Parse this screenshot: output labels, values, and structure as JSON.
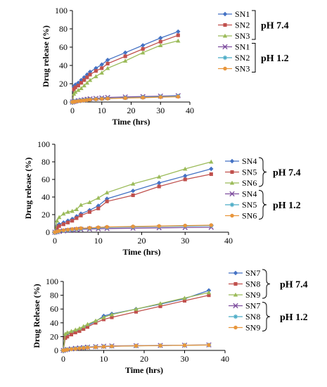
{
  "chart_data": [
    {
      "type": "line",
      "xlabel": "Time (hrs)",
      "ylabel": "Drug release (%)",
      "xlim": [
        0,
        40
      ],
      "ylim": [
        0,
        100
      ],
      "xticks": [
        0,
        10,
        20,
        30,
        40
      ],
      "yticks": [
        0,
        20,
        40,
        60,
        80,
        100
      ],
      "legend_position": "right",
      "groups": [
        {
          "label": "pH 7.4",
          "series": [
            0,
            1,
            2
          ]
        },
        {
          "label": "pH 1.2",
          "series": [
            3,
            4,
            5
          ]
        }
      ],
      "series": [
        {
          "name": "SN1",
          "color": "#4472c4",
          "marker": "diamond",
          "x": [
            0,
            0.5,
            1,
            2,
            3,
            4,
            5,
            6,
            8,
            10,
            12,
            18,
            24,
            30,
            36
          ],
          "y": [
            0,
            17,
            19,
            21,
            24,
            27,
            30,
            33,
            37,
            41,
            46,
            54,
            62,
            70,
            77
          ]
        },
        {
          "name": "SN2",
          "color": "#c0504d",
          "marker": "square",
          "x": [
            0,
            0.5,
            1,
            2,
            3,
            4,
            5,
            6,
            8,
            10,
            12,
            18,
            24,
            30,
            36
          ],
          "y": [
            0,
            14,
            16,
            18,
            21,
            24,
            27,
            30,
            34,
            37,
            42,
            50,
            58,
            66,
            73
          ]
        },
        {
          "name": "SN3",
          "color": "#9bbb59",
          "marker": "triangle",
          "x": [
            0,
            0.5,
            1,
            2,
            3,
            4,
            5,
            6,
            8,
            10,
            12,
            18,
            24,
            30,
            36
          ],
          "y": [
            0,
            9,
            11,
            13,
            15,
            18,
            21,
            24,
            28,
            32,
            37,
            45,
            54,
            62,
            67
          ]
        },
        {
          "name": "SN1",
          "color": "#7f4f9f",
          "marker": "x",
          "x": [
            0,
            0.5,
            1,
            2,
            3,
            4,
            5,
            6,
            8,
            10,
            12,
            18,
            24,
            30,
            36
          ],
          "y": [
            0,
            0.5,
            1,
            1.5,
            2,
            2.5,
            3,
            3.5,
            4,
            4.5,
            5,
            5.5,
            6,
            6.5,
            7
          ]
        },
        {
          "name": "SN2",
          "color": "#4bacc6",
          "marker": "star",
          "x": [
            0,
            0.5,
            1,
            2,
            3,
            4,
            5,
            6,
            8,
            10,
            12,
            18,
            24,
            30,
            36
          ],
          "y": [
            0,
            0.4,
            0.8,
            1.2,
            1.6,
            2,
            2.4,
            2.8,
            3.2,
            3.6,
            4,
            4.6,
            5.2,
            5.8,
            6.4
          ]
        },
        {
          "name": "SN3",
          "color": "#e8963c",
          "marker": "circle",
          "x": [
            0,
            0.5,
            1,
            2,
            3,
            4,
            5,
            6,
            8,
            10,
            12,
            18,
            24,
            30,
            36
          ],
          "y": [
            0,
            0.3,
            0.6,
            1,
            1.4,
            1.8,
            2.2,
            2.6,
            3,
            3.4,
            3.8,
            4.3,
            4.8,
            5.3,
            5.8
          ]
        }
      ]
    },
    {
      "type": "line",
      "xlabel": "Time (hrs)",
      "ylabel": "Drug release (%)",
      "xlim": [
        0,
        40
      ],
      "ylim": [
        0,
        100
      ],
      "xticks": [
        0,
        10,
        20,
        30,
        40
      ],
      "yticks": [
        0,
        20,
        40,
        60,
        80,
        100
      ],
      "legend_position": "right",
      "groups": [
        {
          "label": "pH 7.4",
          "series": [
            0,
            1,
            2
          ]
        },
        {
          "label": "pH 1.2",
          "series": [
            3,
            4,
            5
          ]
        }
      ],
      "series": [
        {
          "name": "SN4",
          "color": "#4472c4",
          "marker": "diamond",
          "x": [
            0,
            0.5,
            1,
            2,
            3,
            4,
            5,
            6,
            8,
            10,
            12,
            18,
            24,
            30,
            36
          ],
          "y": [
            0,
            7,
            9,
            11,
            13,
            15,
            18,
            21,
            25,
            30,
            38,
            47,
            56,
            64,
            72
          ]
        },
        {
          "name": "SN5",
          "color": "#c0504d",
          "marker": "square",
          "x": [
            0,
            0.5,
            1,
            2,
            3,
            4,
            5,
            6,
            8,
            10,
            12,
            18,
            24,
            30,
            36
          ],
          "y": [
            0,
            5,
            7,
            9,
            11,
            13,
            16,
            19,
            23,
            27,
            35,
            42,
            52,
            60,
            66
          ]
        },
        {
          "name": "SN6",
          "color": "#9bbb59",
          "marker": "triangle",
          "x": [
            0,
            0.5,
            1,
            2,
            3,
            4,
            5,
            6,
            8,
            10,
            12,
            18,
            24,
            30,
            36
          ],
          "y": [
            0,
            13,
            17,
            21,
            23,
            24,
            26,
            31,
            34,
            39,
            45,
            55,
            63,
            72,
            80
          ]
        },
        {
          "name": "SN4",
          "color": "#7f4f9f",
          "marker": "x",
          "x": [
            0,
            0.5,
            1,
            2,
            3,
            4,
            5,
            6,
            8,
            10,
            12,
            18,
            24,
            30,
            36
          ],
          "y": [
            0,
            0.5,
            1,
            1.5,
            2,
            2.5,
            3,
            3.3,
            3.6,
            3.9,
            4.2,
            4.6,
            5,
            5.3,
            5.6
          ]
        },
        {
          "name": "SN5",
          "color": "#4bacc6",
          "marker": "star",
          "x": [
            0,
            0.5,
            1,
            2,
            3,
            4,
            5,
            6,
            8,
            10,
            12,
            18,
            24,
            30,
            36
          ],
          "y": [
            0,
            0.6,
            1.2,
            1.8,
            2.4,
            3,
            3.5,
            4,
            4.5,
            5,
            5.5,
            6,
            6.5,
            7,
            7.5
          ]
        },
        {
          "name": "SN6",
          "color": "#e8963c",
          "marker": "circle",
          "x": [
            0,
            0.5,
            1,
            2,
            3,
            4,
            5,
            6,
            8,
            10,
            12,
            18,
            24,
            30,
            36
          ],
          "y": [
            0,
            0.8,
            1.5,
            2.2,
            2.9,
            3.5,
            4,
            4.5,
            5,
            5.5,
            6,
            6.5,
            7,
            7.5,
            8
          ]
        }
      ]
    },
    {
      "type": "line",
      "xlabel": "Time (hrs)",
      "ylabel": "Drug Release (%)",
      "xlim": [
        0,
        40
      ],
      "ylim": [
        0,
        100
      ],
      "xticks": [
        0,
        10,
        20,
        30,
        40
      ],
      "yticks": [
        0,
        20,
        40,
        60,
        80,
        100
      ],
      "legend_position": "right",
      "groups": [
        {
          "label": "pH 7.4",
          "series": [
            0,
            1,
            2
          ]
        },
        {
          "label": "pH 1.2",
          "series": [
            3,
            4,
            5
          ]
        }
      ],
      "series": [
        {
          "name": "SN7",
          "color": "#4472c4",
          "marker": "diamond",
          "x": [
            0,
            0.5,
            1,
            2,
            3,
            4,
            5,
            6,
            8,
            10,
            12,
            18,
            24,
            30,
            36
          ],
          "y": [
            0,
            22,
            24,
            26,
            28,
            30,
            33,
            36,
            42,
            50,
            53,
            60,
            67,
            75,
            87
          ]
        },
        {
          "name": "SN8",
          "color": "#c0504d",
          "marker": "square",
          "x": [
            0,
            0.5,
            1,
            2,
            3,
            4,
            5,
            6,
            8,
            10,
            12,
            18,
            24,
            30,
            36
          ],
          "y": [
            0,
            18,
            20,
            23,
            26,
            28,
            31,
            34,
            40,
            45,
            48,
            56,
            64,
            72,
            80
          ]
        },
        {
          "name": "SN9",
          "color": "#9bbb59",
          "marker": "triangle",
          "x": [
            0,
            0.5,
            1,
            2,
            3,
            4,
            5,
            6,
            8,
            10,
            12,
            18,
            24,
            30,
            36
          ],
          "y": [
            0,
            24,
            26,
            28,
            30,
            32,
            35,
            38,
            43,
            48,
            52,
            60,
            68,
            76,
            84
          ]
        },
        {
          "name": "SN7",
          "color": "#7f4f9f",
          "marker": "x",
          "x": [
            0,
            0.5,
            1,
            2,
            3,
            4,
            5,
            6,
            8,
            10,
            12,
            18,
            24,
            30,
            36
          ],
          "y": [
            0,
            0.8,
            1.5,
            2.2,
            3,
            3.6,
            4.2,
            4.8,
            5.4,
            6,
            6.4,
            6.8,
            7.2,
            7.6,
            8
          ]
        },
        {
          "name": "SN8",
          "color": "#4bacc6",
          "marker": "star",
          "x": [
            0,
            0.5,
            1,
            2,
            3,
            4,
            5,
            6,
            8,
            10,
            12,
            18,
            24,
            30,
            36
          ],
          "y": [
            0,
            0.7,
            1.3,
            2,
            2.7,
            3.3,
            3.9,
            4.5,
            5,
            5.5,
            6,
            6.5,
            7,
            7.4,
            7.8
          ]
        },
        {
          "name": "SN9",
          "color": "#e8963c",
          "marker": "circle",
          "x": [
            0,
            0.5,
            1,
            2,
            3,
            4,
            5,
            6,
            8,
            10,
            12,
            18,
            24,
            30,
            36
          ],
          "y": [
            0,
            0.6,
            1.2,
            1.8,
            2.4,
            3,
            3.6,
            4.2,
            4.8,
            5.4,
            6,
            6.6,
            7,
            7.4,
            7.8
          ]
        }
      ]
    }
  ]
}
